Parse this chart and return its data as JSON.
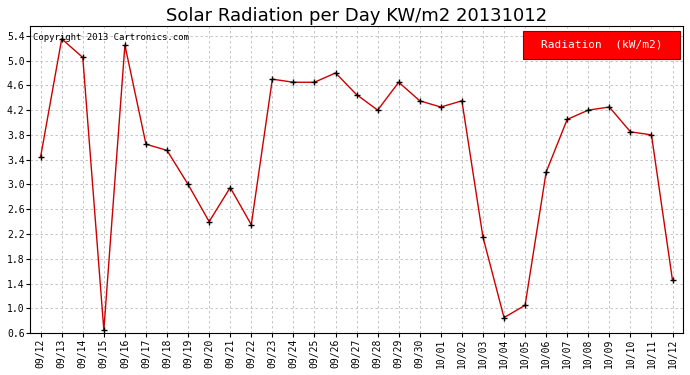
{
  "title": "Solar Radiation per Day KW/m2 20131012",
  "copyright": "Copyright 2013 Cartronics.com",
  "legend_label": "Radiation  (kW/m2)",
  "dates": [
    "09/12",
    "09/13",
    "09/14",
    "09/15",
    "09/16",
    "09/17",
    "09/18",
    "09/19",
    "09/20",
    "09/21",
    "09/22",
    "09/23",
    "09/24",
    "09/25",
    "09/26",
    "09/27",
    "09/28",
    "09/29",
    "09/30",
    "10/01",
    "10/02",
    "10/03",
    "10/04",
    "10/05",
    "10/06",
    "10/07",
    "10/08",
    "10/09",
    "10/10",
    "10/11",
    "10/12"
  ],
  "values": [
    3.45,
    5.35,
    5.05,
    0.65,
    5.25,
    3.65,
    3.55,
    3.0,
    2.4,
    2.95,
    2.35,
    4.7,
    4.65,
    4.65,
    4.8,
    4.45,
    4.2,
    4.65,
    4.35,
    4.25,
    4.35,
    2.15,
    0.85,
    1.05,
    3.2,
    4.05,
    4.2,
    4.25,
    3.85,
    3.8,
    1.45
  ],
  "line_color": "#cc0000",
  "marker_color": "#000000",
  "bg_color": "#ffffff",
  "grid_color": "#bbbbbb",
  "ylim_min": 0.6,
  "ylim_max": 5.55,
  "yticks": [
    0.6,
    1.0,
    1.4,
    1.8,
    2.2,
    2.6,
    3.0,
    3.4,
    3.8,
    4.2,
    4.6,
    5.0,
    5.4
  ],
  "title_fontsize": 13,
  "tick_fontsize": 7,
  "copyright_fontsize": 6.5,
  "legend_fontsize": 8
}
